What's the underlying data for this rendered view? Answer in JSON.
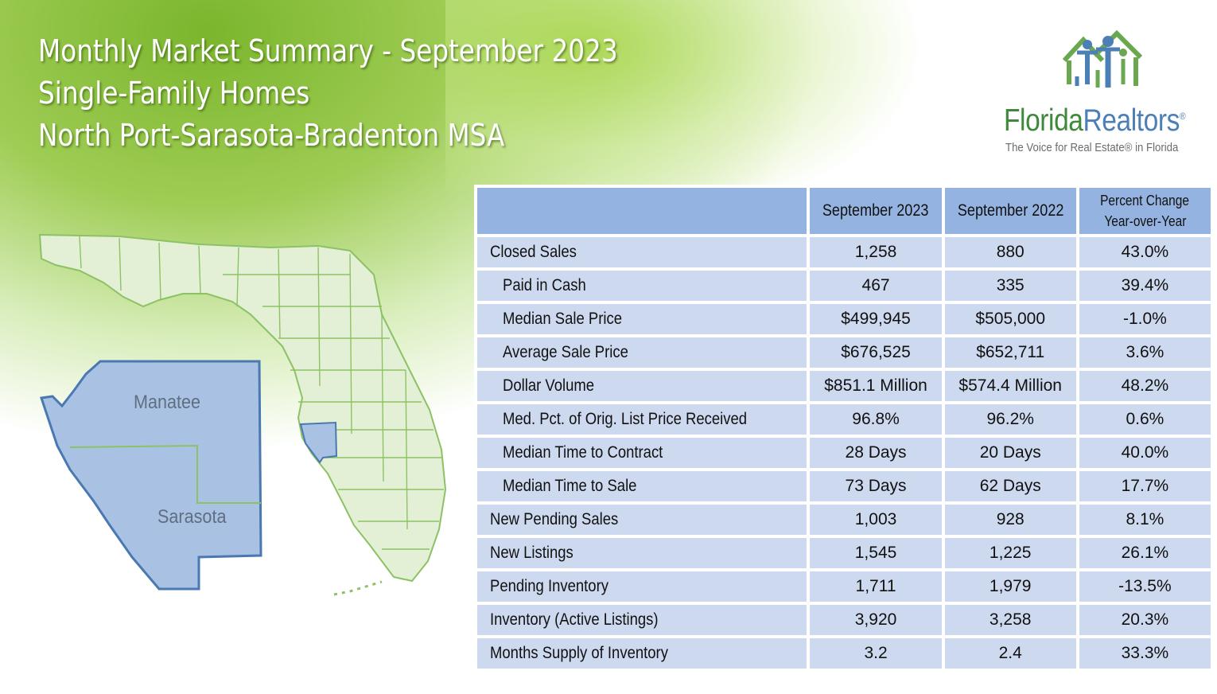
{
  "header": {
    "title_line1": "Monthly Market Summary - September 2023",
    "title_line2": "Single-Family Homes",
    "title_line3": "North Port-Sarasota-Bradenton MSA"
  },
  "logo": {
    "name_part1": "Florida",
    "name_part2": "Realtors",
    "registered": "®",
    "tagline": "The Voice for Real Estate® in Florida"
  },
  "map": {
    "county_labels": [
      "Manatee",
      "Sarasota"
    ],
    "colors": {
      "highlight": "#a9c2e3",
      "highlight_border": "#4a78b0",
      "state_fill": "#e4f0d6",
      "state_border": "#8cc265"
    }
  },
  "table": {
    "columns": [
      "",
      "September 2023",
      "September 2022",
      "Percent Change Year-over-Year"
    ],
    "column_header_pct_line1": "Percent Change",
    "column_header_pct_line2": "Year-over-Year",
    "rows": [
      {
        "label": "Closed Sales",
        "sub": false,
        "sep2023": "1,258",
        "sep2022": "880",
        "pct": "43.0%"
      },
      {
        "label": "Paid in Cash",
        "sub": true,
        "sep2023": "467",
        "sep2022": "335",
        "pct": "39.4%"
      },
      {
        "label": "Median Sale Price",
        "sub": true,
        "sep2023": "$499,945",
        "sep2022": "$505,000",
        "pct": "-1.0%"
      },
      {
        "label": "Average Sale Price",
        "sub": true,
        "sep2023": "$676,525",
        "sep2022": "$652,711",
        "pct": "3.6%"
      },
      {
        "label": "Dollar Volume",
        "sub": true,
        "sep2023": "$851.1 Million",
        "sep2022": "$574.4 Million",
        "pct": "48.2%"
      },
      {
        "label": "Med. Pct. of Orig. List Price Received",
        "sub": true,
        "sep2023": "96.8%",
        "sep2022": "96.2%",
        "pct": "0.6%"
      },
      {
        "label": "Median Time to Contract",
        "sub": true,
        "sep2023": "28 Days",
        "sep2022": "20 Days",
        "pct": "40.0%"
      },
      {
        "label": "Median Time to Sale",
        "sub": true,
        "sep2023": "73 Days",
        "sep2022": "62 Days",
        "pct": "17.7%"
      },
      {
        "label": "New Pending Sales",
        "sub": false,
        "sep2023": "1,003",
        "sep2022": "928",
        "pct": "8.1%"
      },
      {
        "label": "New Listings",
        "sub": false,
        "sep2023": "1,545",
        "sep2022": "1,225",
        "pct": "26.1%"
      },
      {
        "label": "Pending Inventory",
        "sub": false,
        "sep2023": "1,711",
        "sep2022": "1,979",
        "pct": "-13.5%"
      },
      {
        "label": "Inventory (Active Listings)",
        "sub": false,
        "sep2023": "3,920",
        "sep2022": "3,258",
        "pct": "20.3%"
      },
      {
        "label": "Months Supply of Inventory",
        "sub": false,
        "sep2023": "3.2",
        "sep2022": "2.4",
        "pct": "33.3%"
      }
    ]
  }
}
